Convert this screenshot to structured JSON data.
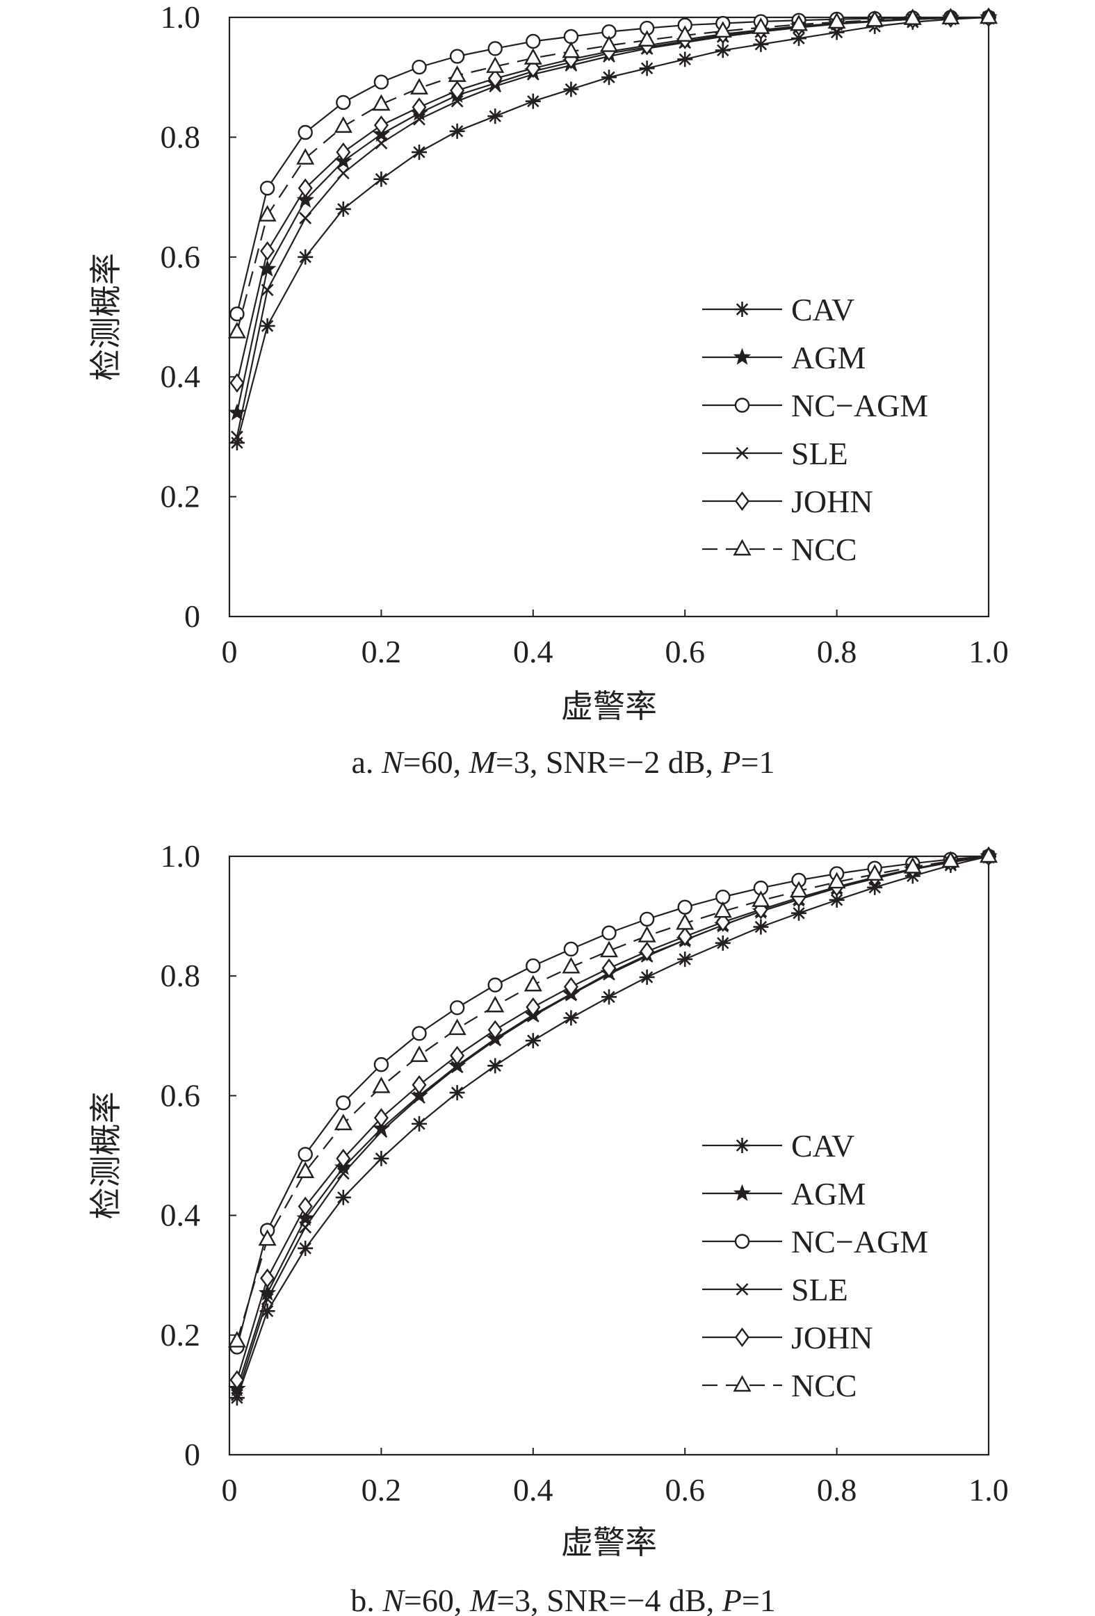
{
  "chart_data": [
    {
      "type": "line",
      "caption": "a. N=60, M=3, SNR=−2 dB, P=1",
      "caption_parts": [
        {
          "text": "a. "
        },
        {
          "text": "N",
          "italic": true
        },
        {
          "text": "=60, "
        },
        {
          "text": "M",
          "italic": true
        },
        {
          "text": "=3, SNR=−2 dB, "
        },
        {
          "text": "P",
          "italic": true
        },
        {
          "text": "=1"
        }
      ],
      "xlabel": "虚警率",
      "ylabel": "检测概率",
      "xlim": [
        0,
        1
      ],
      "ylim": [
        0,
        1
      ],
      "x_ticks": [
        "0",
        "0.2",
        "0.4",
        "0.6",
        "0.8",
        "1.0"
      ],
      "y_ticks": [
        "0",
        "0.2",
        "0.4",
        "0.6",
        "0.8",
        "1.0"
      ],
      "grid": false,
      "legend_position": "lower-right",
      "x": [
        0.01,
        0.05,
        0.1,
        0.15,
        0.2,
        0.25,
        0.3,
        0.35,
        0.4,
        0.45,
        0.5,
        0.55,
        0.6,
        0.65,
        0.7,
        0.75,
        0.8,
        0.85,
        0.9,
        0.95,
        1.0
      ],
      "series": [
        {
          "name": "CAV",
          "marker": "asterisk",
          "dash": false,
          "values": [
            0.29,
            0.485,
            0.6,
            0.68,
            0.73,
            0.775,
            0.81,
            0.835,
            0.86,
            0.88,
            0.9,
            0.915,
            0.93,
            0.945,
            0.955,
            0.965,
            0.975,
            0.985,
            0.992,
            0.997,
            1.0
          ]
        },
        {
          "name": "AGM",
          "marker": "star",
          "dash": false,
          "values": [
            0.34,
            0.58,
            0.695,
            0.76,
            0.805,
            0.84,
            0.87,
            0.89,
            0.91,
            0.925,
            0.94,
            0.95,
            0.96,
            0.97,
            0.978,
            0.985,
            0.99,
            0.994,
            0.997,
            0.999,
            1.0
          ]
        },
        {
          "name": "NC−AGM",
          "marker": "circle",
          "dash": false,
          "values": [
            0.505,
            0.715,
            0.808,
            0.858,
            0.892,
            0.917,
            0.935,
            0.948,
            0.96,
            0.968,
            0.976,
            0.982,
            0.987,
            0.99,
            0.993,
            0.995,
            0.997,
            0.998,
            0.999,
            1.0,
            1.0
          ]
        },
        {
          "name": "SLE",
          "marker": "x",
          "dash": false,
          "values": [
            0.3,
            0.545,
            0.665,
            0.74,
            0.79,
            0.83,
            0.86,
            0.885,
            0.905,
            0.92,
            0.935,
            0.948,
            0.958,
            0.968,
            0.976,
            0.983,
            0.989,
            0.993,
            0.997,
            0.999,
            1.0
          ]
        },
        {
          "name": "JOHN",
          "marker": "diamond",
          "dash": false,
          "values": [
            0.39,
            0.61,
            0.715,
            0.775,
            0.82,
            0.85,
            0.878,
            0.898,
            0.915,
            0.93,
            0.943,
            0.953,
            0.963,
            0.972,
            0.979,
            0.985,
            0.99,
            0.994,
            0.997,
            0.999,
            1.0
          ]
        },
        {
          "name": "NCC",
          "marker": "triangle",
          "dash": true,
          "values": [
            0.475,
            0.67,
            0.765,
            0.818,
            0.855,
            0.882,
            0.903,
            0.918,
            0.932,
            0.943,
            0.953,
            0.962,
            0.97,
            0.977,
            0.983,
            0.988,
            0.992,
            0.995,
            0.998,
            0.999,
            1.0
          ]
        }
      ]
    },
    {
      "type": "line",
      "caption": "b. N=60, M=3, SNR=−4 dB, P=1",
      "caption_parts": [
        {
          "text": "b. "
        },
        {
          "text": "N",
          "italic": true
        },
        {
          "text": "=60, "
        },
        {
          "text": "M",
          "italic": true
        },
        {
          "text": "=3, SNR=−4 dB, "
        },
        {
          "text": "P",
          "italic": true
        },
        {
          "text": "=1"
        }
      ],
      "xlabel": "虚警率",
      "ylabel": "检测概率",
      "xlim": [
        0,
        1
      ],
      "ylim": [
        0,
        1
      ],
      "x_ticks": [
        "0",
        "0.2",
        "0.4",
        "0.6",
        "0.8",
        "1.0"
      ],
      "y_ticks": [
        "0",
        "0.2",
        "0.4",
        "0.6",
        "0.8",
        "1.0"
      ],
      "grid": false,
      "legend_position": "lower-right",
      "x": [
        0.01,
        0.05,
        0.1,
        0.15,
        0.2,
        0.25,
        0.3,
        0.35,
        0.4,
        0.45,
        0.5,
        0.55,
        0.6,
        0.65,
        0.7,
        0.75,
        0.8,
        0.85,
        0.9,
        0.95,
        1.0
      ],
      "series": [
        {
          "name": "CAV",
          "marker": "asterisk",
          "dash": false,
          "values": [
            0.095,
            0.24,
            0.345,
            0.43,
            0.495,
            0.553,
            0.605,
            0.65,
            0.692,
            0.73,
            0.765,
            0.798,
            0.828,
            0.855,
            0.882,
            0.905,
            0.927,
            0.948,
            0.967,
            0.985,
            1.0
          ]
        },
        {
          "name": "AGM",
          "marker": "star",
          "dash": false,
          "values": [
            0.11,
            0.27,
            0.395,
            0.48,
            0.545,
            0.6,
            0.65,
            0.695,
            0.735,
            0.77,
            0.805,
            0.835,
            0.86,
            0.885,
            0.908,
            0.928,
            0.947,
            0.963,
            0.978,
            0.99,
            1.0
          ]
        },
        {
          "name": "NC−AGM",
          "marker": "circle",
          "dash": false,
          "values": [
            0.18,
            0.375,
            0.502,
            0.588,
            0.652,
            0.704,
            0.747,
            0.785,
            0.817,
            0.845,
            0.872,
            0.895,
            0.915,
            0.932,
            0.947,
            0.96,
            0.971,
            0.98,
            0.988,
            0.995,
            1.0
          ]
        },
        {
          "name": "SLE",
          "marker": "x",
          "dash": false,
          "values": [
            0.1,
            0.26,
            0.38,
            0.47,
            0.54,
            0.597,
            0.648,
            0.693,
            0.733,
            0.769,
            0.803,
            0.833,
            0.86,
            0.885,
            0.908,
            0.928,
            0.947,
            0.963,
            0.978,
            0.99,
            1.0
          ]
        },
        {
          "name": "JOHN",
          "marker": "diamond",
          "dash": false,
          "values": [
            0.125,
            0.295,
            0.415,
            0.495,
            0.563,
            0.618,
            0.667,
            0.71,
            0.748,
            0.782,
            0.813,
            0.841,
            0.866,
            0.89,
            0.911,
            0.931,
            0.949,
            0.965,
            0.979,
            0.991,
            1.0
          ]
        },
        {
          "name": "NCC",
          "marker": "triangle",
          "dash": true,
          "values": [
            0.19,
            0.36,
            0.473,
            0.553,
            0.615,
            0.667,
            0.712,
            0.75,
            0.785,
            0.815,
            0.842,
            0.867,
            0.888,
            0.908,
            0.926,
            0.942,
            0.957,
            0.97,
            0.982,
            0.992,
            1.0
          ]
        }
      ]
    }
  ]
}
